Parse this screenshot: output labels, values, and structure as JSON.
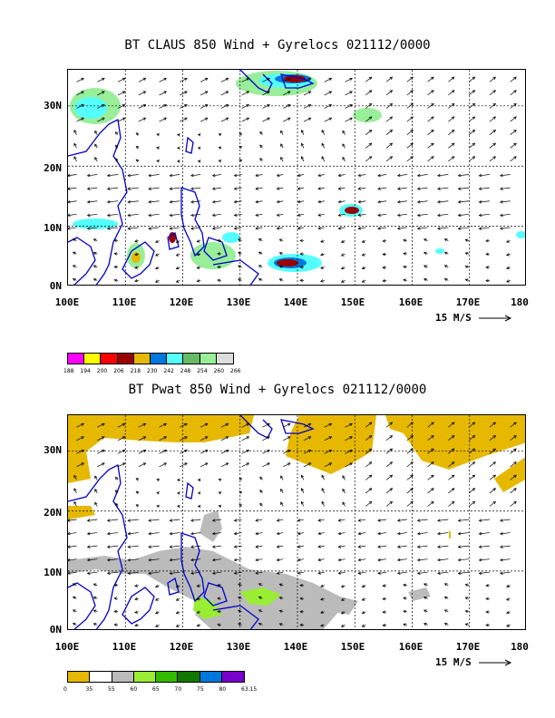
{
  "panel1": {
    "title": "BT CLAUS 850 Wind + Gyrelocs 021112/0000",
    "lat_labels": [
      "30N",
      "20N",
      "10N",
      "0N"
    ],
    "lon_labels": [
      "100E",
      "110E",
      "120E",
      "130E",
      "140E",
      "150E",
      "160E",
      "170E",
      "180"
    ],
    "ref_vector": "15 M/S",
    "legend": {
      "colors": [
        "#ff00ff",
        "#ffff00",
        "#ff0000",
        "#990000",
        "#e6b800",
        "#0077dd",
        "#55ffff",
        "#66bb66",
        "#99ee99",
        "#dddddd"
      ],
      "labels": [
        "188",
        "194",
        "200",
        "206",
        "218",
        "230",
        "242",
        "248",
        "254",
        "260",
        "266"
      ]
    }
  },
  "panel2": {
    "title": "BT Pwat 850 Wind + Gyrelocs 021112/0000",
    "lat_labels": [
      "30N",
      "20N",
      "10N",
      "0N"
    ],
    "lon_labels": [
      "100E",
      "110E",
      "120E",
      "130E",
      "140E",
      "150E",
      "160E",
      "170E",
      "180"
    ],
    "ref_vector": "15 M/S",
    "legend": {
      "colors": [
        "#e6b800",
        "#ffffff",
        "#bbbbbb",
        "#99ee33",
        "#33bb00",
        "#117700",
        "#0077dd",
        "#7700cc"
      ],
      "labels": [
        "0",
        "35",
        "55",
        "60",
        "65",
        "70",
        "75",
        "80",
        "63.15"
      ]
    }
  },
  "map": {
    "lon_range": [
      100,
      180
    ],
    "lat_range": [
      0,
      36
    ],
    "coast_color": "#0000cc",
    "arrow_color": "#000000"
  }
}
